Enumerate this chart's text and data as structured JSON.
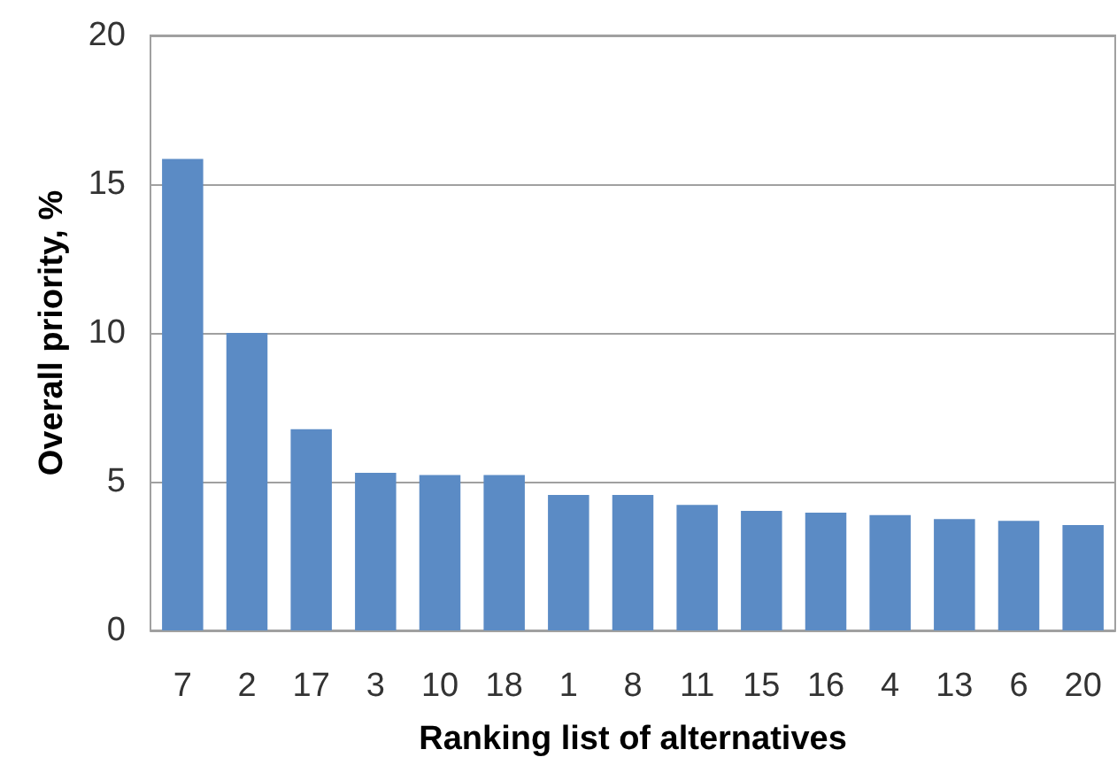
{
  "chart_data": {
    "type": "bar",
    "xlabel": "Ranking list of alternatives",
    "ylabel": "Overall priority, %",
    "categories": [
      "7",
      "2",
      "17",
      "3",
      "10",
      "18",
      "1",
      "8",
      "11",
      "15",
      "16",
      "4",
      "13",
      "6",
      "20"
    ],
    "values": [
      15.85,
      10.0,
      6.76,
      5.3,
      5.22,
      5.22,
      4.55,
      4.55,
      4.22,
      4.02,
      3.96,
      3.88,
      3.74,
      3.68,
      3.54
    ],
    "color": "#5b8bc5",
    "ylim": [
      0,
      20
    ],
    "yticks": [
      0,
      5,
      10,
      15,
      20
    ],
    "grid": "y"
  }
}
